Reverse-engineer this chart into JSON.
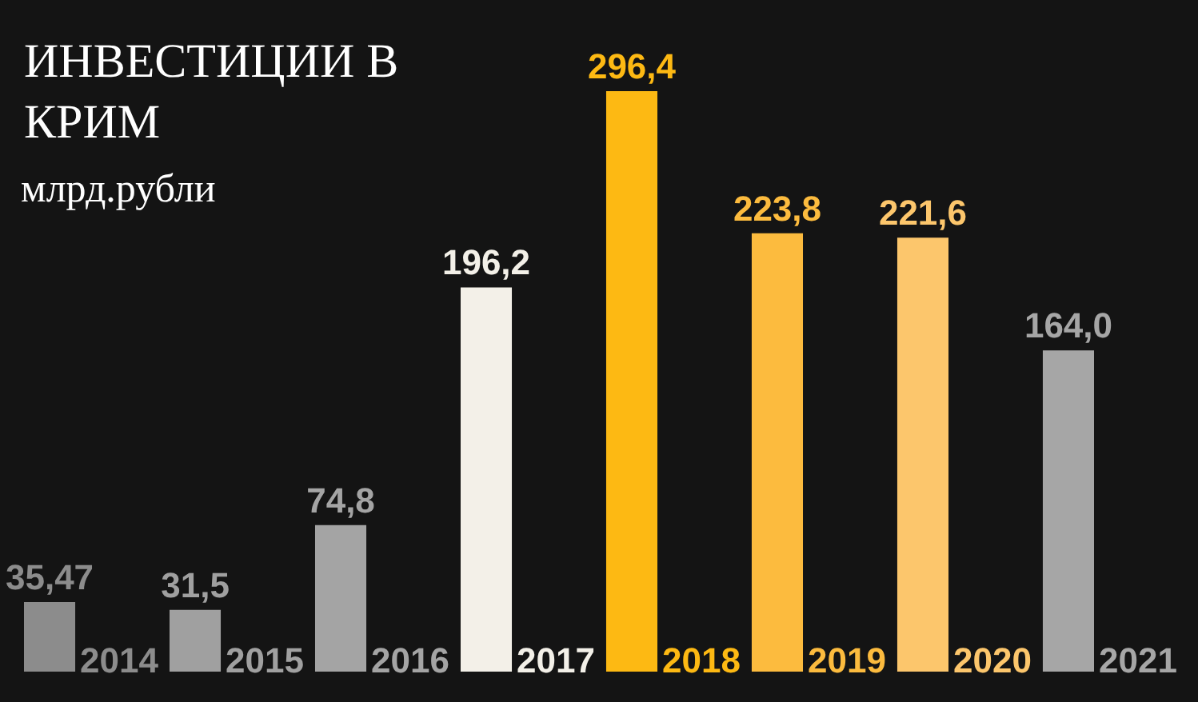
{
  "chart_data": {
    "type": "bar",
    "title": "ИНВЕСТИЦИИ В КРИМ",
    "subtitle": "млрд.рубли",
    "categories": [
      "2014",
      "2015",
      "2016",
      "2017",
      "2018",
      "2019",
      "2020",
      "2021"
    ],
    "values": [
      35.47,
      31.5,
      74.8,
      196.2,
      296.4,
      223.8,
      221.6,
      164.0
    ],
    "value_labels": [
      "35,47",
      "31,5",
      "74,8",
      "196,2",
      "296,4",
      "223,8",
      "221,6",
      "164,0"
    ],
    "colors": [
      "#8c8c8c",
      "#a0a0a0",
      "#a4a4a4",
      "#f3f0e8",
      "#fdb913",
      "#fcbb3e",
      "#fcc66c",
      "#a6a6a6"
    ]
  }
}
